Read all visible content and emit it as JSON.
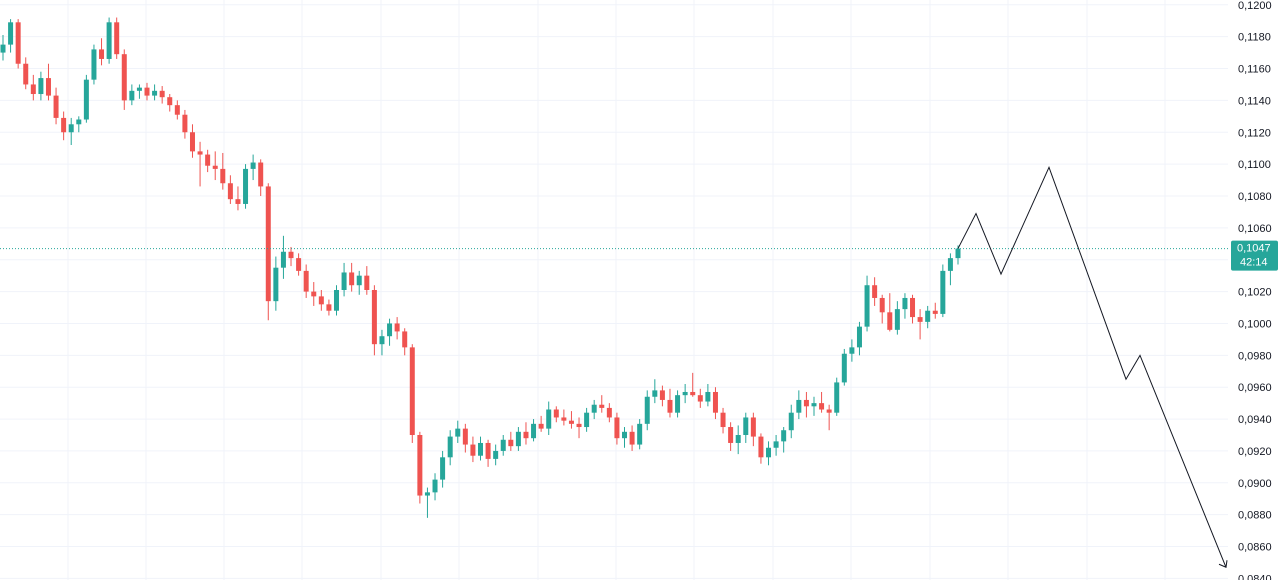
{
  "chart_data": {
    "type": "candlestick",
    "y_axis_ticks": [
      "0,1200",
      "0,1180",
      "0,1160",
      "0,1140",
      "0,1120",
      "0,1100",
      "0,1080",
      "0,1060",
      "0,1040",
      "0,1020",
      "0,1000",
      "0,0980",
      "0,0960",
      "0,0940",
      "0,0920",
      "0,0900",
      "0,0880",
      "0,0860",
      "0,0840"
    ],
    "ylim": [
      0.0839,
      0.1203
    ],
    "grid": true,
    "colors": {
      "up": "#26a69a",
      "down": "#ef5350",
      "current_price": "#26a69a",
      "projection": "#131722"
    },
    "current_price": {
      "value": 0.1047,
      "label": "0,1047",
      "countdown": "42:14"
    },
    "candles": [
      [
        0.117,
        0.1181,
        0.1165,
        0.1175
      ],
      [
        0.1175,
        0.1191,
        0.117,
        0.1189
      ],
      [
        0.1189,
        0.1191,
        0.116,
        0.1163
      ],
      [
        0.1163,
        0.1167,
        0.1147,
        0.115
      ],
      [
        0.115,
        0.1156,
        0.114,
        0.1144
      ],
      [
        0.1144,
        0.1158,
        0.114,
        0.1154
      ],
      [
        0.1154,
        0.1163,
        0.114,
        0.1143
      ],
      [
        0.1143,
        0.1148,
        0.1125,
        0.1129
      ],
      [
        0.1129,
        0.1133,
        0.1115,
        0.112
      ],
      [
        0.112,
        0.1129,
        0.1112,
        0.1125
      ],
      [
        0.1125,
        0.113,
        0.112,
        0.1128
      ],
      [
        0.1128,
        0.1156,
        0.1126,
        0.1153
      ],
      [
        0.1153,
        0.1175,
        0.115,
        0.1172
      ],
      [
        0.1172,
        0.1179,
        0.1162,
        0.1166
      ],
      [
        0.1166,
        0.1192,
        0.1163,
        0.1189
      ],
      [
        0.1189,
        0.1192,
        0.1166,
        0.1169
      ],
      [
        0.1169,
        0.1172,
        0.1134,
        0.114
      ],
      [
        0.114,
        0.115,
        0.1137,
        0.1146
      ],
      [
        0.1146,
        0.115,
        0.1141,
        0.1148
      ],
      [
        0.1148,
        0.1151,
        0.114,
        0.1143
      ],
      [
        0.1143,
        0.115,
        0.114,
        0.1146
      ],
      [
        0.1146,
        0.1149,
        0.1138,
        0.1142
      ],
      [
        0.1142,
        0.1144,
        0.1133,
        0.1137
      ],
      [
        0.1137,
        0.114,
        0.1128,
        0.1131
      ],
      [
        0.1131,
        0.1134,
        0.1116,
        0.112
      ],
      [
        0.112,
        0.1125,
        0.1104,
        0.1108
      ],
      [
        0.1108,
        0.1114,
        0.1086,
        0.1106
      ],
      [
        0.1106,
        0.1109,
        0.1095,
        0.1099
      ],
      [
        0.1099,
        0.1108,
        0.109,
        0.1097
      ],
      [
        0.1097,
        0.1107,
        0.1084,
        0.1088
      ],
      [
        0.1088,
        0.1093,
        0.1075,
        0.1078
      ],
      [
        0.1078,
        0.1086,
        0.1071,
        0.1075
      ],
      [
        0.1075,
        0.11,
        0.1072,
        0.1097
      ],
      [
        0.1097,
        0.1106,
        0.109,
        0.1101
      ],
      [
        0.1101,
        0.1103,
        0.108,
        0.1086
      ],
      [
        0.1086,
        0.1088,
        0.1002,
        0.1014
      ],
      [
        0.1014,
        0.1042,
        0.1008,
        0.1035
      ],
      [
        0.1035,
        0.1055,
        0.1028,
        0.1045
      ],
      [
        0.1045,
        0.1048,
        0.1036,
        0.1041
      ],
      [
        0.1041,
        0.1044,
        0.103,
        0.1033
      ],
      [
        0.1033,
        0.1037,
        0.1016,
        0.102
      ],
      [
        0.102,
        0.1026,
        0.1011,
        0.1017
      ],
      [
        0.1017,
        0.1021,
        0.1008,
        0.1012
      ],
      [
        0.1012,
        0.1015,
        0.1005,
        0.1008
      ],
      [
        0.1008,
        0.1024,
        0.1005,
        0.1021
      ],
      [
        0.1021,
        0.1038,
        0.1017,
        0.1032
      ],
      [
        0.1032,
        0.1038,
        0.102,
        0.1024
      ],
      [
        0.1024,
        0.1033,
        0.1018,
        0.103
      ],
      [
        0.103,
        0.1036,
        0.1018,
        0.1021
      ],
      [
        0.1021,
        0.1024,
        0.098,
        0.0987
      ],
      [
        0.0987,
        0.0996,
        0.098,
        0.0992
      ],
      [
        0.0992,
        0.1003,
        0.0986,
        0.1
      ],
      [
        0.1,
        0.1004,
        0.099,
        0.0995
      ],
      [
        0.0995,
        0.0997,
        0.098,
        0.0985
      ],
      [
        0.0985,
        0.0987,
        0.0925,
        0.093
      ],
      [
        0.093,
        0.0932,
        0.0887,
        0.0892
      ],
      [
        0.0892,
        0.0897,
        0.0878,
        0.0894
      ],
      [
        0.0894,
        0.0906,
        0.0889,
        0.0902
      ],
      [
        0.0902,
        0.092,
        0.0897,
        0.0916
      ],
      [
        0.0916,
        0.0933,
        0.0911,
        0.0929
      ],
      [
        0.0929,
        0.0939,
        0.0925,
        0.0934
      ],
      [
        0.0934,
        0.0937,
        0.0919,
        0.0924
      ],
      [
        0.0924,
        0.0929,
        0.0913,
        0.0917
      ],
      [
        0.0917,
        0.0929,
        0.0914,
        0.0925
      ],
      [
        0.0925,
        0.0927,
        0.091,
        0.0915
      ],
      [
        0.0915,
        0.0924,
        0.0911,
        0.092
      ],
      [
        0.092,
        0.093,
        0.0917,
        0.0927
      ],
      [
        0.0927,
        0.0932,
        0.092,
        0.0923
      ],
      [
        0.0923,
        0.0935,
        0.092,
        0.0932
      ],
      [
        0.0932,
        0.0938,
        0.0924,
        0.0928
      ],
      [
        0.0928,
        0.094,
        0.0926,
        0.0937
      ],
      [
        0.0937,
        0.0942,
        0.0932,
        0.0934
      ],
      [
        0.0934,
        0.0951,
        0.093,
        0.0946
      ],
      [
        0.0946,
        0.0948,
        0.0938,
        0.0941
      ],
      [
        0.0941,
        0.0946,
        0.0936,
        0.0939
      ],
      [
        0.0939,
        0.0945,
        0.0934,
        0.0937
      ],
      [
        0.0937,
        0.0941,
        0.0928,
        0.0935
      ],
      [
        0.0935,
        0.0947,
        0.0932,
        0.0944
      ],
      [
        0.0944,
        0.0952,
        0.094,
        0.0949
      ],
      [
        0.0949,
        0.0955,
        0.0944,
        0.0947
      ],
      [
        0.0947,
        0.095,
        0.0938,
        0.0941
      ],
      [
        0.0941,
        0.0944,
        0.0924,
        0.0928
      ],
      [
        0.0928,
        0.0935,
        0.0922,
        0.0932
      ],
      [
        0.0932,
        0.0936,
        0.092,
        0.0924
      ],
      [
        0.0924,
        0.094,
        0.0921,
        0.0937
      ],
      [
        0.0937,
        0.0958,
        0.0933,
        0.0954
      ],
      [
        0.0954,
        0.0965,
        0.095,
        0.0958
      ],
      [
        0.0958,
        0.0961,
        0.0948,
        0.0952
      ],
      [
        0.0952,
        0.0959,
        0.0941,
        0.0944
      ],
      [
        0.0944,
        0.0958,
        0.0941,
        0.0955
      ],
      [
        0.0955,
        0.0962,
        0.095,
        0.0957
      ],
      [
        0.0957,
        0.0969,
        0.0954,
        0.0955
      ],
      [
        0.0955,
        0.0959,
        0.0947,
        0.0951
      ],
      [
        0.0951,
        0.0962,
        0.0948,
        0.0957
      ],
      [
        0.0957,
        0.096,
        0.094,
        0.0944
      ],
      [
        0.0944,
        0.0947,
        0.0931,
        0.0935
      ],
      [
        0.0935,
        0.0938,
        0.092,
        0.0925
      ],
      [
        0.0925,
        0.0936,
        0.0918,
        0.093
      ],
      [
        0.093,
        0.0944,
        0.0925,
        0.0941
      ],
      [
        0.0941,
        0.0944,
        0.0923,
        0.0929
      ],
      [
        0.0929,
        0.0931,
        0.0912,
        0.0916
      ],
      [
        0.0916,
        0.0926,
        0.0911,
        0.0922
      ],
      [
        0.0922,
        0.093,
        0.0917,
        0.0926
      ],
      [
        0.0926,
        0.0935,
        0.0919,
        0.0933
      ],
      [
        0.0933,
        0.0949,
        0.0928,
        0.0944
      ],
      [
        0.0944,
        0.0958,
        0.094,
        0.0952
      ],
      [
        0.0952,
        0.0957,
        0.0941,
        0.0948
      ],
      [
        0.0948,
        0.0954,
        0.0942,
        0.095
      ],
      [
        0.095,
        0.0957,
        0.0944,
        0.0946
      ],
      [
        0.0946,
        0.0949,
        0.0933,
        0.0944
      ],
      [
        0.0944,
        0.0966,
        0.0942,
        0.0963
      ],
      [
        0.0963,
        0.0984,
        0.0961,
        0.0981
      ],
      [
        0.0981,
        0.099,
        0.0976,
        0.0985
      ],
      [
        0.0985,
        0.1001,
        0.098,
        0.0998
      ],
      [
        0.0998,
        0.103,
        0.0995,
        0.1024
      ],
      [
        0.1024,
        0.1029,
        0.1011,
        0.1016
      ],
      [
        0.1016,
        0.1018,
        0.1,
        0.1007
      ],
      [
        0.1007,
        0.1019,
        0.0995,
        0.0996
      ],
      [
        0.0996,
        0.1014,
        0.0993,
        0.1009
      ],
      [
        0.1009,
        0.1019,
        0.1003,
        0.1016
      ],
      [
        0.1016,
        0.1018,
        0.1,
        0.1004
      ],
      [
        0.1004,
        0.1009,
        0.099,
        0.1001
      ],
      [
        0.1001,
        0.1011,
        0.0997,
        0.1008
      ],
      [
        0.1008,
        0.1013,
        0.1003,
        0.1006
      ],
      [
        0.1006,
        0.1037,
        0.1004,
        0.1033
      ],
      [
        0.1033,
        0.1044,
        0.1024,
        0.1041
      ],
      [
        0.1041,
        0.1049,
        0.1037,
        0.1047
      ]
    ],
    "projection_path": [
      [
        0.1047
      ],
      [
        0.1069
      ],
      [
        0.1031
      ],
      [
        0.1098
      ],
      [
        0.0965
      ],
      [
        0.098
      ],
      [
        0.0847
      ]
    ]
  }
}
